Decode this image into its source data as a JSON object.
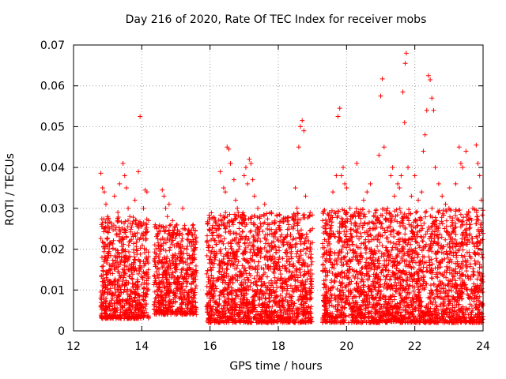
{
  "chart_data": {
    "type": "scatter",
    "title": "Day 216 of 2020, Rate Of TEC Index for receiver mobs",
    "xlabel": "GPS time / hours",
    "ylabel": "ROTI / TECUs",
    "xlim": [
      12,
      24
    ],
    "ylim": [
      0,
      0.07
    ],
    "x_ticks": [
      12,
      14,
      16,
      18,
      20,
      22,
      24
    ],
    "x_tick_labels": [
      "12",
      "14",
      "16",
      "18",
      "20",
      "22",
      "24"
    ],
    "y_ticks": [
      0,
      0.01,
      0.02,
      0.03,
      0.04,
      0.05,
      0.06,
      0.07
    ],
    "y_tick_labels": [
      "0",
      "0.01",
      "0.02",
      "0.03",
      "0.04",
      "0.05",
      "0.06",
      "0.07"
    ],
    "grid": true,
    "marker": "+",
    "color": "#ff0000",
    "series": [
      {
        "name": "ROTI",
        "points": [
          [
            12.8,
            0.0386
          ],
          [
            12.85,
            0.035
          ],
          [
            12.9,
            0.034
          ],
          [
            12.95,
            0.031
          ],
          [
            13.0,
            0.028
          ],
          [
            13.05,
            0.025
          ],
          [
            13.2,
            0.033
          ],
          [
            13.3,
            0.029
          ],
          [
            13.35,
            0.036
          ],
          [
            13.45,
            0.041
          ],
          [
            13.5,
            0.038
          ],
          [
            13.55,
            0.035
          ],
          [
            13.6,
            0.03
          ],
          [
            13.65,
            0.028
          ],
          [
            13.8,
            0.032
          ],
          [
            13.85,
            0.026
          ],
          [
            13.9,
            0.039
          ],
          [
            13.95,
            0.0525
          ],
          [
            14.05,
            0.03
          ],
          [
            14.1,
            0.0345
          ],
          [
            14.15,
            0.034
          ],
          [
            14.2,
            0.027
          ],
          [
            14.6,
            0.0345
          ],
          [
            14.65,
            0.033
          ],
          [
            14.7,
            0.03
          ],
          [
            14.75,
            0.028
          ],
          [
            14.8,
            0.031
          ],
          [
            14.9,
            0.027
          ],
          [
            15.2,
            0.03
          ],
          [
            15.25,
            0.025
          ],
          [
            15.4,
            0.024
          ],
          [
            16.2,
            0.025
          ],
          [
            16.3,
            0.039
          ],
          [
            16.4,
            0.035
          ],
          [
            16.45,
            0.034
          ],
          [
            16.5,
            0.045
          ],
          [
            16.55,
            0.0445
          ],
          [
            16.6,
            0.041
          ],
          [
            16.7,
            0.037
          ],
          [
            16.75,
            0.032
          ],
          [
            16.8,
            0.03
          ],
          [
            16.9,
            0.028
          ],
          [
            17.0,
            0.038
          ],
          [
            17.05,
            0.04
          ],
          [
            17.1,
            0.036
          ],
          [
            17.15,
            0.042
          ],
          [
            17.2,
            0.041
          ],
          [
            17.25,
            0.037
          ],
          [
            17.3,
            0.033
          ],
          [
            17.4,
            0.03
          ],
          [
            17.45,
            0.028
          ],
          [
            17.6,
            0.031
          ],
          [
            17.7,
            0.026
          ],
          [
            17.8,
            0.029
          ],
          [
            17.9,
            0.024
          ],
          [
            18.2,
            0.023
          ],
          [
            18.3,
            0.026
          ],
          [
            18.5,
            0.035
          ],
          [
            18.55,
            0.03
          ],
          [
            18.6,
            0.045
          ],
          [
            18.65,
            0.05
          ],
          [
            18.7,
            0.0515
          ],
          [
            18.75,
            0.049
          ],
          [
            18.8,
            0.033
          ],
          [
            18.9,
            0.028
          ],
          [
            19.0,
            0.025
          ],
          [
            19.3,
            0.027
          ],
          [
            19.4,
            0.025
          ],
          [
            19.5,
            0.029
          ],
          [
            19.6,
            0.034
          ],
          [
            19.7,
            0.038
          ],
          [
            19.75,
            0.0525
          ],
          [
            19.8,
            0.0545
          ],
          [
            19.85,
            0.038
          ],
          [
            19.9,
            0.04
          ],
          [
            19.95,
            0.036
          ],
          [
            20.0,
            0.035
          ],
          [
            20.1,
            0.03
          ],
          [
            20.2,
            0.028
          ],
          [
            20.3,
            0.041
          ],
          [
            20.5,
            0.032
          ],
          [
            20.6,
            0.034
          ],
          [
            20.7,
            0.036
          ],
          [
            20.8,
            0.028
          ],
          [
            20.9,
            0.027
          ],
          [
            20.95,
            0.043
          ],
          [
            21.0,
            0.0575
          ],
          [
            21.05,
            0.0617
          ],
          [
            21.1,
            0.045
          ],
          [
            21.2,
            0.03
          ],
          [
            21.3,
            0.038
          ],
          [
            21.35,
            0.04
          ],
          [
            21.4,
            0.033
          ],
          [
            21.5,
            0.036
          ],
          [
            21.55,
            0.035
          ],
          [
            21.6,
            0.038
          ],
          [
            21.65,
            0.0585
          ],
          [
            21.7,
            0.051
          ],
          [
            21.72,
            0.0655
          ],
          [
            21.75,
            0.068
          ],
          [
            21.8,
            0.04
          ],
          [
            21.9,
            0.033
          ],
          [
            22.0,
            0.038
          ],
          [
            22.1,
            0.032
          ],
          [
            22.2,
            0.034
          ],
          [
            22.25,
            0.044
          ],
          [
            22.3,
            0.048
          ],
          [
            22.35,
            0.054
          ],
          [
            22.4,
            0.0625
          ],
          [
            22.45,
            0.0615
          ],
          [
            22.5,
            0.057
          ],
          [
            22.55,
            0.054
          ],
          [
            22.6,
            0.04
          ],
          [
            22.7,
            0.036
          ],
          [
            22.8,
            0.033
          ],
          [
            22.9,
            0.031
          ],
          [
            23.0,
            0.03
          ],
          [
            23.2,
            0.036
          ],
          [
            23.3,
            0.045
          ],
          [
            23.35,
            0.041
          ],
          [
            23.4,
            0.04
          ],
          [
            23.5,
            0.044
          ],
          [
            23.6,
            0.035
          ],
          [
            23.7,
            0.03
          ],
          [
            23.8,
            0.0455
          ],
          [
            23.85,
            0.041
          ],
          [
            23.9,
            0.038
          ],
          [
            23.95,
            0.032
          ],
          [
            12.9,
            0.009
          ],
          [
            13.1,
            0.012
          ],
          [
            13.3,
            0.007
          ],
          [
            13.6,
            0.015
          ],
          [
            13.9,
            0.011
          ],
          [
            14.1,
            0.006
          ],
          [
            14.5,
            0.013
          ],
          [
            14.8,
            0.01
          ],
          [
            15.1,
            0.008
          ],
          [
            15.3,
            0.014
          ],
          [
            15.5,
            0.006
          ],
          [
            16.1,
            0.012
          ],
          [
            16.4,
            0.009
          ],
          [
            16.8,
            0.016
          ],
          [
            17.1,
            0.007
          ],
          [
            17.5,
            0.011
          ],
          [
            17.9,
            0.013
          ],
          [
            18.3,
            0.005
          ],
          [
            18.8,
            0.01
          ],
          [
            19.4,
            0.008
          ],
          [
            19.8,
            0.012
          ],
          [
            20.2,
            0.006
          ],
          [
            20.6,
            0.014
          ],
          [
            21.0,
            0.009
          ],
          [
            21.4,
            0.011
          ],
          [
            21.8,
            0.003
          ],
          [
            22.2,
            0.013
          ],
          [
            22.6,
            0.007
          ],
          [
            23.0,
            0.01
          ],
          [
            23.4,
            0.012
          ],
          [
            23.8,
            0.008
          ],
          [
            17.7,
            0.002
          ],
          [
            21.8,
            0.002
          ],
          [
            12.85,
            0.003
          ]
        ]
      }
    ],
    "dense_bands": [
      {
        "x_start": 12.8,
        "x_end": 14.2,
        "y_min": 0.003,
        "y_max": 0.028
      },
      {
        "x_start": 14.35,
        "x_end": 15.6,
        "y_min": 0.004,
        "y_max": 0.026
      },
      {
        "x_start": 15.9,
        "x_end": 19.0,
        "y_min": 0.002,
        "y_max": 0.029
      },
      {
        "x_start": 19.3,
        "x_end": 24.0,
        "y_min": 0.002,
        "y_max": 0.03
      }
    ]
  }
}
